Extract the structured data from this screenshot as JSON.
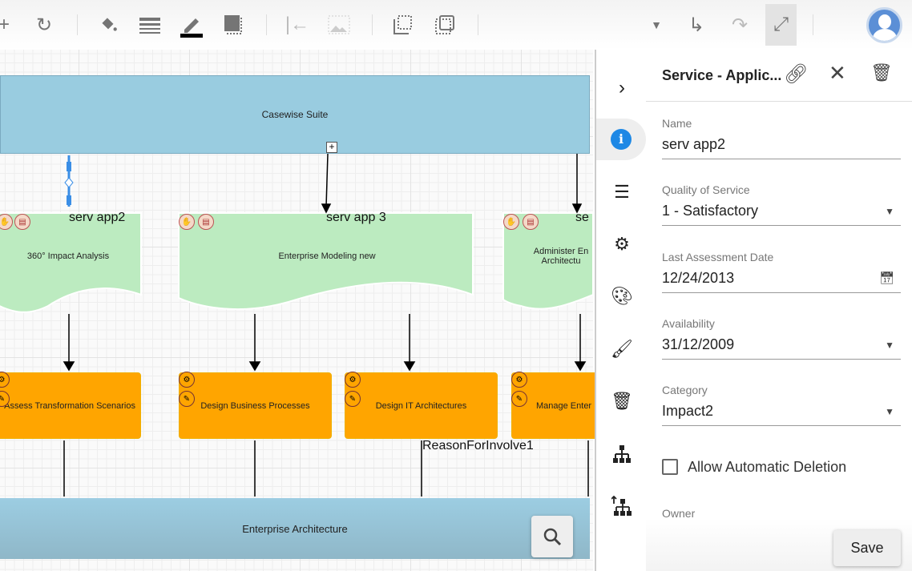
{
  "toolbar": {
    "icons": [
      "plus-icon",
      "rotate-icon",
      "fill-icon",
      "line-weight-icon",
      "pen-color-icon",
      "shadow-icon",
      "align-left-icon",
      "image-icon",
      "select-area-icon",
      "resize-icon",
      "dropdown-icon",
      "redirect-icon",
      "redo-icon",
      "connector-icon",
      "avatar"
    ]
  },
  "diagram": {
    "top_lane": "Casewise Suite",
    "bottom_lane": "Enterprise Architecture",
    "apps": [
      {
        "name": "serv app2",
        "label": "360° Impact Analysis"
      },
      {
        "name": "serv app 3",
        "label": "Enterprise Modeling new"
      },
      {
        "name": "se",
        "label": "Administer En Architectu"
      }
    ],
    "processes": [
      "Assess Transformation Scenarios",
      "Design Business Processes",
      "Design IT Architectures",
      "Manage Enter Rep"
    ],
    "connector_label": "ReasonForInvolve1"
  },
  "panel": {
    "title": "Service - Applic...",
    "fields": {
      "name_label": "Name",
      "name_value": "serv app2",
      "qos_label": "Quality of Service",
      "qos_value": "1 - Satisfactory",
      "date_label": "Last Assessment Date",
      "date_value": "12/24/2013",
      "avail_label": "Availability",
      "avail_value": "31/12/2009",
      "category_label": "Category",
      "category_value": "Impact2",
      "auto_delete_label": "Allow Automatic Deletion",
      "auto_delete_checked": false,
      "owner_label": "Owner"
    },
    "save_label": "Save"
  },
  "colors": {
    "lane": "#99cce0",
    "app": "#bcebc0",
    "process": "#ffa500",
    "info": "#1e88e5"
  }
}
